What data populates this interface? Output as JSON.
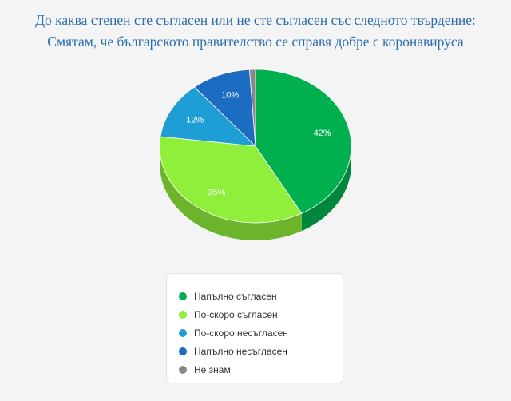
{
  "chart_data": {
    "type": "pie",
    "title_lines": [
      "До каква степен сте съгласен или не сте съгласен със следното твърдение:",
      "Смятам, че българското правителство се справя добре с коронавируса"
    ],
    "categories": [
      "Напълно съгласен",
      "По-скоро съгласен",
      "По-скоро несъгласен",
      "Напълно несъгласен",
      "Не знам"
    ],
    "values": [
      42,
      35,
      12,
      10,
      1
    ],
    "labels": [
      "42%",
      "35%",
      "12%",
      "10%",
      ""
    ],
    "colors": [
      "#00b04f",
      "#8fef3a",
      "#1f9ed6",
      "#1c6cc2",
      "#888888"
    ],
    "side_colors": [
      "#00873b",
      "#6cb42b",
      "#1779a5",
      "#155395",
      "#666666"
    ],
    "legend_position": "bottom"
  }
}
